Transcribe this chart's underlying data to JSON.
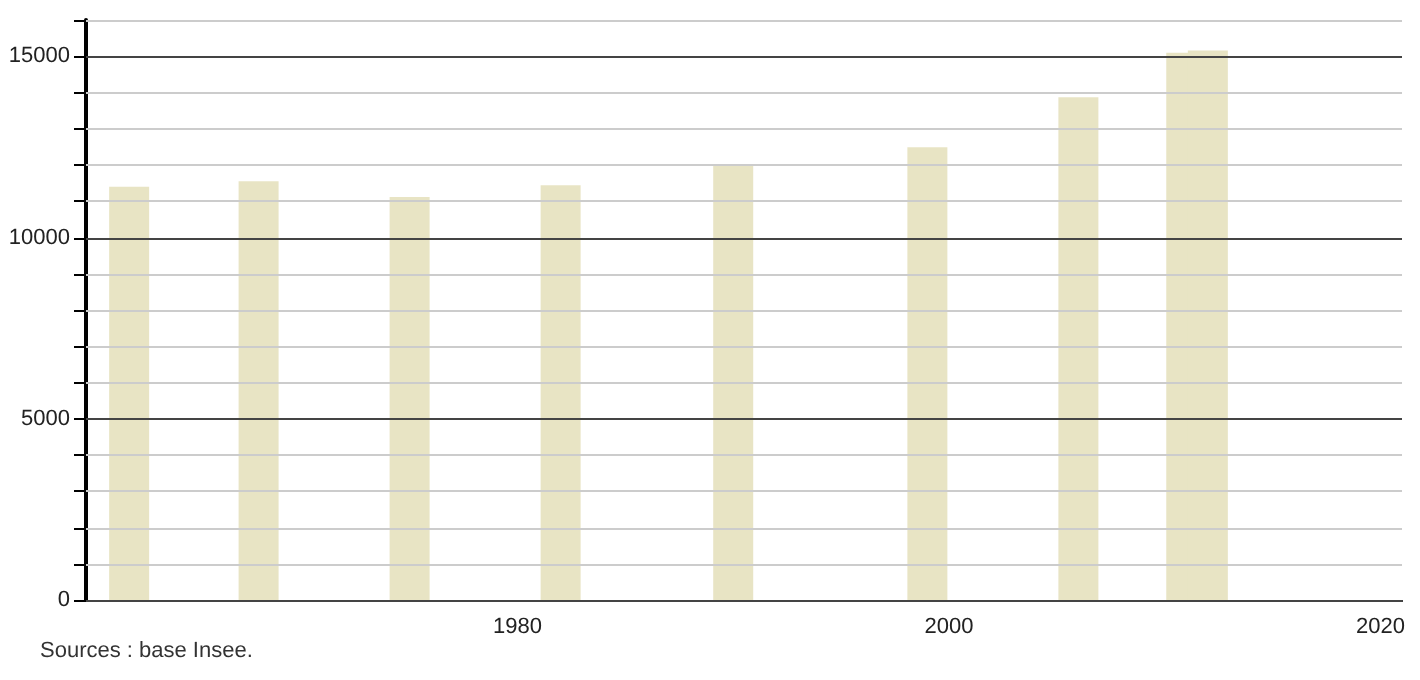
{
  "chart_data": {
    "type": "bar",
    "x": [
      1962,
      1968,
      1975,
      1982,
      1990,
      1999,
      2006,
      2011,
      2012
    ],
    "values": [
      11400,
      11550,
      11120,
      11440,
      11990,
      12490,
      13870,
      15100,
      15160
    ],
    "color": "#e8e4c4",
    "xlim": [
      1960,
      2021
    ],
    "xticks": [
      1980,
      2000,
      2020
    ],
    "ylim": [
      0,
      16000
    ],
    "yticks": [
      0,
      {
        "value": 1000,
        "label": null
      },
      {
        "value": 2000,
        "label": null
      },
      {
        "value": 3000,
        "label": null
      },
      {
        "value": 4000,
        "label": null
      },
      5000,
      {
        "value": 6000,
        "label": null
      },
      {
        "value": 7000,
        "label": null
      },
      {
        "value": 8000,
        "label": null
      },
      {
        "value": 9000,
        "label": null
      },
      10000,
      {
        "value": 11000,
        "label": null
      },
      {
        "value": 12000,
        "label": null
      },
      {
        "value": 13000,
        "label": null
      },
      {
        "value": 14000,
        "label": null
      },
      15000,
      {
        "value": 16000,
        "label": null
      }
    ],
    "grid": "y",
    "annotations": [
      "Sources : base Insee."
    ]
  }
}
